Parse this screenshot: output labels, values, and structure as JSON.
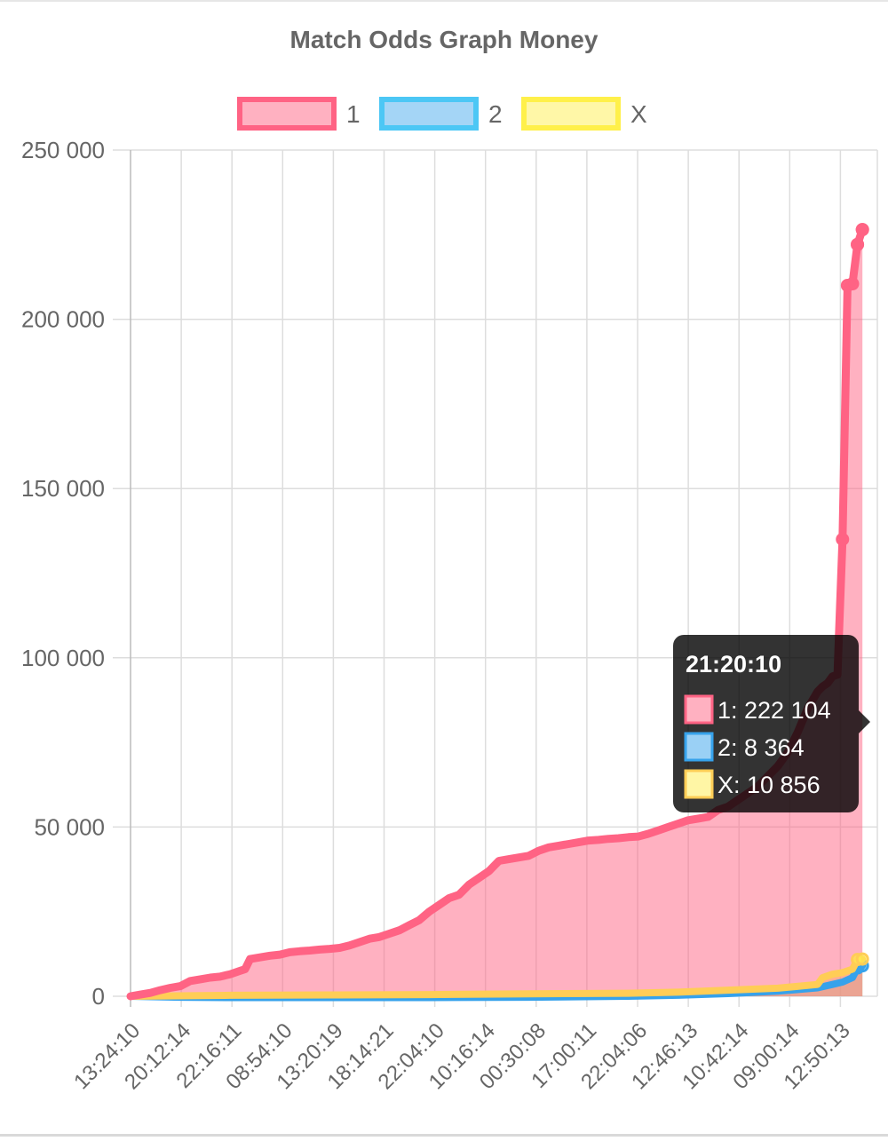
{
  "chart_data": {
    "type": "line",
    "title": "Match Odds Graph Money",
    "legend_position": "top",
    "grid": true,
    "ylim": [
      0,
      250000
    ],
    "yticks": [
      "250 000",
      "200 000",
      "150 000",
      "100 000",
      "50 000",
      "0"
    ],
    "ytick_values": [
      250000,
      200000,
      150000,
      100000,
      50000,
      0
    ],
    "xtick_labels": [
      "13:24:10",
      "20:12:14",
      "22:16:11",
      "08:54:10",
      "13:20:19",
      "18:14:21",
      "22:04:10",
      "10:16:14",
      "00:30:08",
      "17:00:11",
      "22:04:06",
      "12:46:13",
      "10:42:14",
      "09:00:14",
      "12:50:13"
    ],
    "x_index_range": [
      0,
      150
    ],
    "series": [
      {
        "name": "1",
        "color": "#ff6384",
        "fill": "rgba(255,99,132,0.5)",
        "points": [
          [
            0,
            0
          ],
          [
            2,
            500
          ],
          [
            4,
            1000
          ],
          [
            6,
            1800
          ],
          [
            8,
            2500
          ],
          [
            10,
            3000
          ],
          [
            12,
            4500
          ],
          [
            14,
            5000
          ],
          [
            16,
            5500
          ],
          [
            18,
            5800
          ],
          [
            20,
            6500
          ],
          [
            22,
            7500
          ],
          [
            23,
            8000
          ],
          [
            24,
            11000
          ],
          [
            26,
            11500
          ],
          [
            28,
            12000
          ],
          [
            30,
            12300
          ],
          [
            32,
            13000
          ],
          [
            34,
            13300
          ],
          [
            36,
            13500
          ],
          [
            38,
            13800
          ],
          [
            40,
            14000
          ],
          [
            42,
            14300
          ],
          [
            44,
            15000
          ],
          [
            46,
            16000
          ],
          [
            48,
            17000
          ],
          [
            50,
            17500
          ],
          [
            52,
            18500
          ],
          [
            54,
            19500
          ],
          [
            56,
            21000
          ],
          [
            58,
            22500
          ],
          [
            60,
            25000
          ],
          [
            62,
            27000
          ],
          [
            64,
            29000
          ],
          [
            66,
            30000
          ],
          [
            68,
            33000
          ],
          [
            70,
            35000
          ],
          [
            72,
            37000
          ],
          [
            74,
            40000
          ],
          [
            76,
            40500
          ],
          [
            78,
            41000
          ],
          [
            80,
            41500
          ],
          [
            82,
            43000
          ],
          [
            84,
            44000
          ],
          [
            86,
            44500
          ],
          [
            88,
            45000
          ],
          [
            90,
            45500
          ],
          [
            92,
            46000
          ],
          [
            94,
            46200
          ],
          [
            96,
            46500
          ],
          [
            98,
            46700
          ],
          [
            100,
            47000
          ],
          [
            102,
            47200
          ],
          [
            104,
            48000
          ],
          [
            106,
            49000
          ],
          [
            108,
            50000
          ],
          [
            110,
            51000
          ],
          [
            112,
            52000
          ],
          [
            114,
            52500
          ],
          [
            116,
            53000
          ],
          [
            118,
            55000
          ],
          [
            120,
            56000
          ],
          [
            122,
            58000
          ],
          [
            124,
            60000
          ],
          [
            126,
            62000
          ],
          [
            128,
            65000
          ],
          [
            130,
            68000
          ],
          [
            132,
            72000
          ],
          [
            134,
            78000
          ],
          [
            136,
            85000
          ],
          [
            138,
            90000
          ],
          [
            139,
            91500
          ],
          [
            140,
            92500
          ],
          [
            141,
            94500
          ],
          [
            142,
            95000
          ],
          [
            143,
            135000
          ],
          [
            144,
            210000
          ],
          [
            145,
            210500
          ],
          [
            146,
            222104
          ],
          [
            147,
            226500
          ]
        ]
      },
      {
        "name": "2",
        "color": "#36a2eb",
        "fill": "rgba(54,162,235,0.4)",
        "points": [
          [
            0,
            0
          ],
          [
            10,
            -300
          ],
          [
            20,
            -400
          ],
          [
            40,
            -400
          ],
          [
            60,
            -400
          ],
          [
            80,
            -300
          ],
          [
            100,
            0
          ],
          [
            110,
            300
          ],
          [
            120,
            800
          ],
          [
            130,
            1500
          ],
          [
            138,
            2500
          ],
          [
            141,
            3500
          ],
          [
            143,
            4200
          ],
          [
            145,
            5500
          ],
          [
            146,
            8364
          ],
          [
            147,
            9000
          ]
        ]
      },
      {
        "name": "X",
        "color": "#ffcd56",
        "fill": "rgba(255,240,80,0.5)",
        "points": [
          [
            0,
            0
          ],
          [
            20,
            300
          ],
          [
            40,
            400
          ],
          [
            60,
            500
          ],
          [
            80,
            700
          ],
          [
            100,
            900
          ],
          [
            110,
            1200
          ],
          [
            120,
            1800
          ],
          [
            130,
            2400
          ],
          [
            138,
            3500
          ],
          [
            139,
            5500
          ],
          [
            141,
            6500
          ],
          [
            143,
            7000
          ],
          [
            145,
            8000
          ],
          [
            146,
            10856
          ],
          [
            147,
            11000
          ]
        ]
      }
    ],
    "tooltip": {
      "title": "21:20:10",
      "items": [
        {
          "label": "1: 222 104",
          "series": "1"
        },
        {
          "label": "2: 8 364",
          "series": "2"
        },
        {
          "label": "X: 10 856",
          "series": "X"
        }
      ]
    }
  }
}
